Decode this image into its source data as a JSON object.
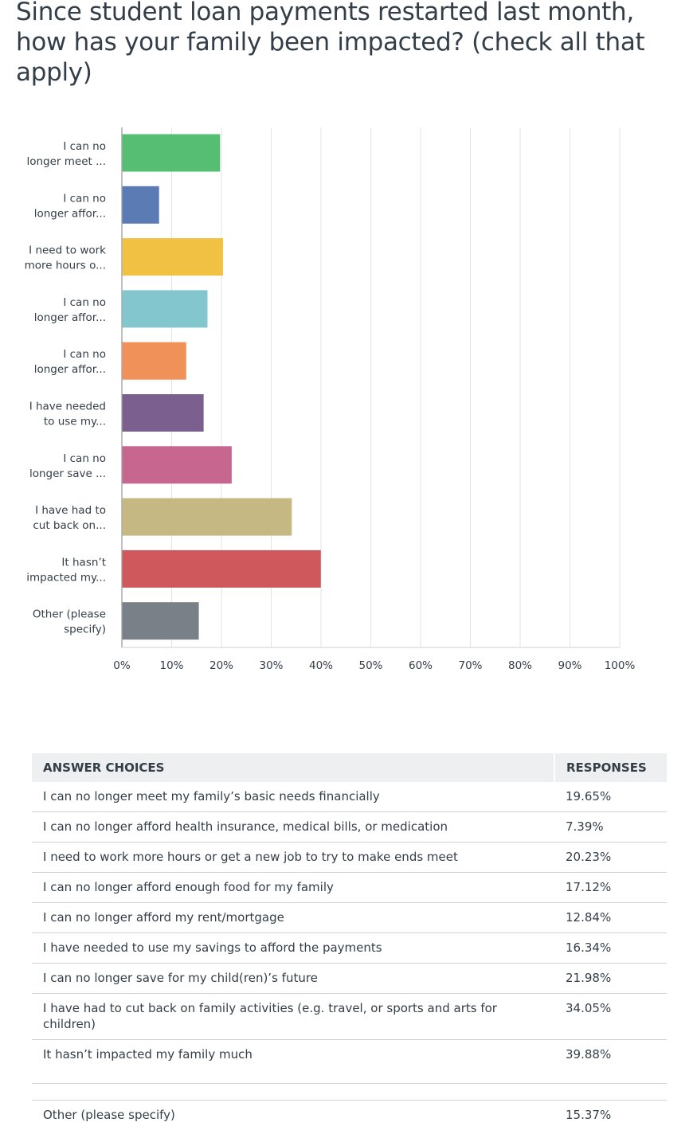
{
  "title": "Since student loan payments restarted last month, how has your family been impacted? (check all that apply)",
  "chart_data": {
    "type": "bar",
    "orientation": "horizontal",
    "categories": [
      [
        "I can no",
        "longer meet ..."
      ],
      [
        "I can no",
        "longer affor..."
      ],
      [
        "I need to work",
        "more hours o..."
      ],
      [
        "I can no",
        "longer affor..."
      ],
      [
        "I can no",
        "longer affor..."
      ],
      [
        "I have needed",
        "to use my..."
      ],
      [
        "I can no",
        "longer save ..."
      ],
      [
        "I have had to",
        "cut back on..."
      ],
      [
        "It hasn’t",
        "impacted my..."
      ],
      [
        "Other (please",
        "specify)"
      ]
    ],
    "values": [
      19.65,
      7.39,
      20.23,
      17.12,
      12.84,
      16.34,
      21.98,
      34.05,
      39.88,
      15.37
    ],
    "colors": [
      "#56be73",
      "#5b7bb5",
      "#f0c142",
      "#83c6ce",
      "#f0915a",
      "#7b5f8e",
      "#c7668f",
      "#c5b882",
      "#cf585d",
      "#7a8087"
    ],
    "xlim": [
      0,
      100
    ],
    "xticks": [
      "0%",
      "10%",
      "20%",
      "30%",
      "40%",
      "50%",
      "60%",
      "70%",
      "80%",
      "90%",
      "100%"
    ],
    "grid": true,
    "xlabel": "",
    "ylabel": ""
  },
  "table": {
    "headers": [
      "ANSWER CHOICES",
      "RESPONSES"
    ],
    "rows": [
      {
        "choice": "I can no longer meet my family’s basic needs financially",
        "response": "19.65%"
      },
      {
        "choice": "I can no longer afford health insurance, medical bills, or medication",
        "response": "7.39%"
      },
      {
        "choice": "I need to work more hours or get a new job to try to make ends meet",
        "response": "20.23%"
      },
      {
        "choice": "I can no longer afford enough food for my family",
        "response": "17.12%"
      },
      {
        "choice": "I can no longer afford my rent/mortgage",
        "response": "12.84%"
      },
      {
        "choice": "I have needed to use my savings to afford the payments",
        "response": "16.34%"
      },
      {
        "choice": "I can no longer save for my child(ren)’s future",
        "response": "21.98%"
      },
      {
        "choice": "I have had to cut back on family activities (e.g. travel, or sports and arts for children)",
        "response": "34.05%"
      },
      {
        "choice": "It hasn’t impacted my family much",
        "response": "39.88%"
      },
      {
        "choice": "Other (please specify)",
        "response": "15.37%"
      }
    ]
  }
}
